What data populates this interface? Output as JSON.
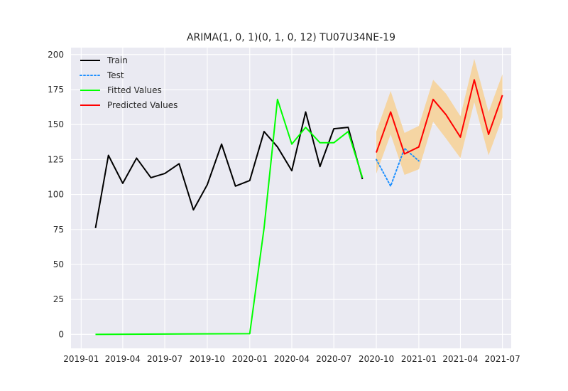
{
  "chart_data": {
    "type": "line",
    "title": "ARIMA(1, 0, 1)(0, 1, 0, 12) TU07U34NE-19",
    "xlabel": "",
    "ylabel": "",
    "ylim": [
      -10,
      205
    ],
    "xlim": [
      "2018-12-10",
      "2021-07-20"
    ],
    "grid": true,
    "legend_position": "top-left",
    "y_ticks": [
      0,
      25,
      50,
      75,
      100,
      125,
      150,
      175,
      200
    ],
    "x_ticks": [
      "2019-01",
      "2019-04",
      "2019-07",
      "2019-10",
      "2020-01",
      "2020-04",
      "2020-07",
      "2020-10",
      "2021-01",
      "2021-04",
      "2021-07"
    ],
    "confidence_band": {
      "color": "#f5d5a3",
      "x": [
        "2020-10-01",
        "2020-11-01",
        "2020-12-01",
        "2021-01-01",
        "2021-02-01",
        "2021-03-01",
        "2021-04-01",
        "2021-05-01",
        "2021-06-01",
        "2021-07-01"
      ],
      "lower": [
        115,
        143,
        114,
        118,
        152,
        140,
        126,
        166,
        128,
        155
      ],
      "upper": [
        145,
        174,
        144,
        149,
        182,
        172,
        156,
        197,
        159,
        186
      ]
    },
    "series": [
      {
        "name": "Train",
        "color": "#000000",
        "style": "solid",
        "x": [
          "2019-02-01",
          "2019-03-01",
          "2019-04-01",
          "2019-05-01",
          "2019-06-01",
          "2019-07-01",
          "2019-08-01",
          "2019-09-01",
          "2019-10-01",
          "2019-11-01",
          "2019-12-01",
          "2020-01-01",
          "2020-02-01",
          "2020-03-01",
          "2020-04-01",
          "2020-05-01",
          "2020-06-01",
          "2020-07-01",
          "2020-08-01",
          "2020-09-01"
        ],
        "values": [
          76,
          128,
          108,
          126,
          112,
          115,
          122,
          89,
          107,
          136,
          106,
          110,
          145,
          134,
          117,
          159,
          120,
          147,
          148,
          111
        ]
      },
      {
        "name": "Test",
        "color": "#1e90ff",
        "style": "dotted",
        "x": [
          "2020-10-01",
          "2020-11-01",
          "2020-12-01",
          "2021-01-01"
        ],
        "values": [
          125,
          106,
          133,
          124
        ]
      },
      {
        "name": "Fitted Values",
        "color": "#00ff00",
        "style": "solid",
        "x": [
          "2019-02-01",
          "2020-01-01",
          "2020-02-01",
          "2020-03-01",
          "2020-04-01",
          "2020-05-01",
          "2020-06-01",
          "2020-07-01",
          "2020-08-01",
          "2020-09-01"
        ],
        "values": [
          0,
          0.5,
          76,
          168,
          136,
          148,
          137,
          137,
          145,
          112
        ]
      },
      {
        "name": "Predicted Values",
        "color": "#ff0000",
        "style": "solid",
        "x": [
          "2020-10-01",
          "2020-11-01",
          "2020-12-01",
          "2021-01-01",
          "2021-02-01",
          "2021-03-01",
          "2021-04-01",
          "2021-05-01",
          "2021-06-01",
          "2021-07-01"
        ],
        "values": [
          130,
          159,
          129,
          134,
          168,
          157,
          141,
          182,
          143,
          171
        ]
      }
    ]
  },
  "style": {
    "axes_bg": "#eaeaf2",
    "grid_color": "#ffffff",
    "text_color": "#262626"
  }
}
